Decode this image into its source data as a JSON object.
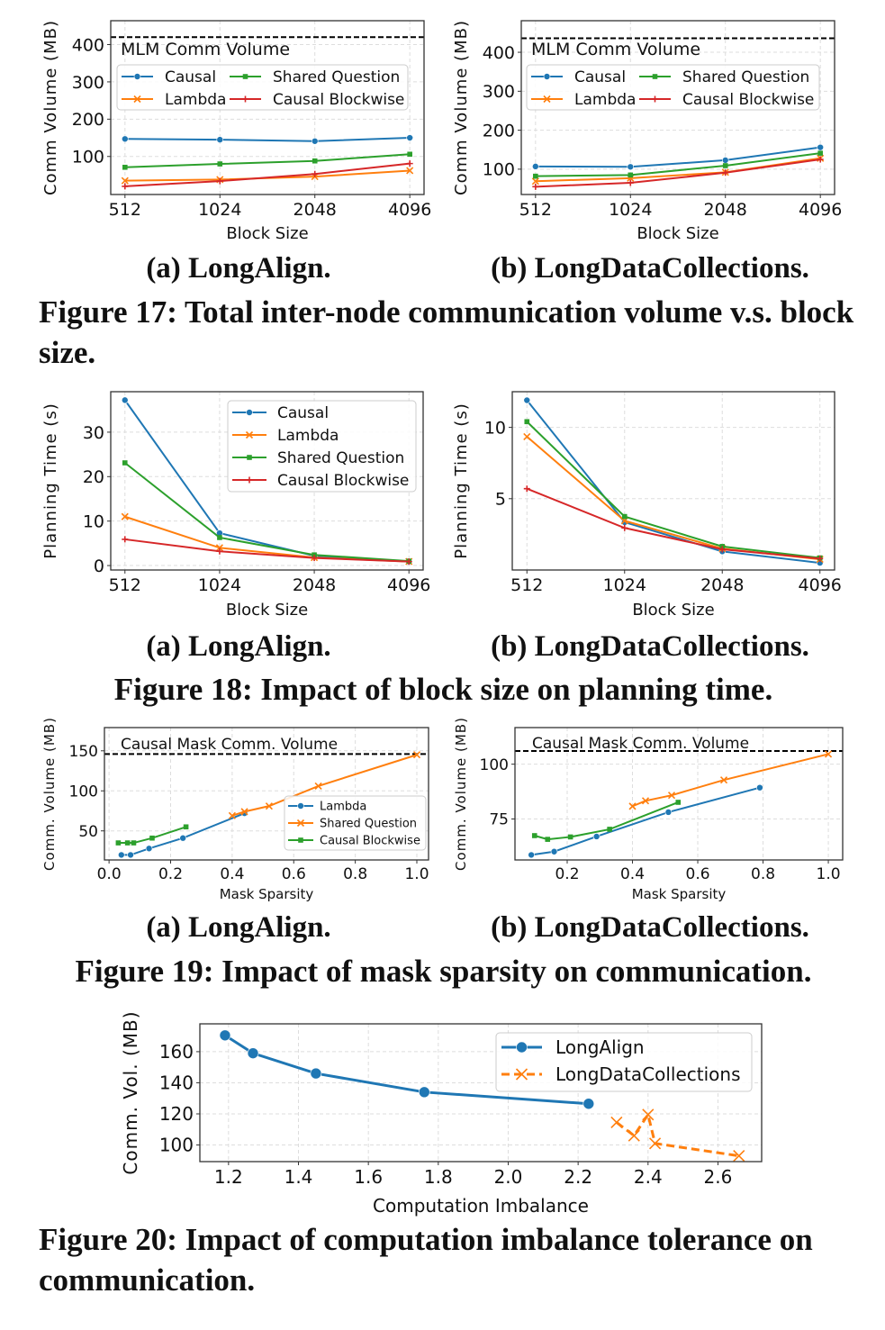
{
  "colors": {
    "blue": "#1f77b4",
    "orange": "#ff7f0e",
    "green": "#2ca02c",
    "red": "#d62728"
  },
  "figures": [
    {
      "caption": "Figure 17: Total inter-node communication volume v.s. block size.",
      "sub_a": "(a) LongAlign.",
      "sub_b": "(b) LongDataCollections."
    },
    {
      "caption": "Figure 18: Impact of block size on planning time.",
      "sub_a": "(a) LongAlign.",
      "sub_b": "(b) LongDataCollections."
    },
    {
      "caption": "Figure 19: Impact of mask sparsity on communication.",
      "sub_a": "(a) LongAlign.",
      "sub_b": "(b) LongDataCollections."
    },
    {
      "caption": "Figure 20: Impact of computation imbalance tolerance on communication."
    }
  ],
  "chart_data": [
    {
      "type": "line",
      "id": "fig17a",
      "xlabel": "Block Size",
      "ylabel": "Comm Volume (MB)",
      "categories": [
        "512",
        "1024",
        "2048",
        "4096"
      ],
      "xlim": [
        -0.15,
        3.15
      ],
      "ylim": [
        -2,
        464
      ],
      "yticks": [
        100,
        200,
        300,
        400
      ],
      "ytick_labels": [
        "100",
        "200",
        "300",
        "400"
      ],
      "grid": true,
      "hline": {
        "value": 420,
        "label": "MLM Comm Volume"
      },
      "legend": "upper-left, 2 columns",
      "series": [
        {
          "name": "Causal",
          "color": "#1f77b4",
          "marker": "circle",
          "values": [
            147,
            145,
            141,
            150
          ]
        },
        {
          "name": "Lambda",
          "color": "#ff7f0e",
          "marker": "x",
          "values": [
            35,
            38,
            46,
            62
          ]
        },
        {
          "name": "Shared Question",
          "color": "#2ca02c",
          "marker": "square",
          "values": [
            71,
            80,
            88,
            106
          ]
        },
        {
          "name": "Causal Blockwise",
          "color": "#d62728",
          "marker": "plus",
          "values": [
            20,
            34,
            53,
            81
          ]
        }
      ]
    },
    {
      "type": "line",
      "id": "fig17b",
      "xlabel": "Block Size",
      "ylabel": "Comm Volume (MB)",
      "categories": [
        "512",
        "1024",
        "2048",
        "4096"
      ],
      "xlim": [
        -0.15,
        3.15
      ],
      "ylim": [
        35,
        481
      ],
      "yticks": [
        100,
        200,
        300,
        400
      ],
      "ytick_labels": [
        "100",
        "200",
        "300",
        "400"
      ],
      "grid": true,
      "hline": {
        "value": 436,
        "label": "MLM Comm Volume"
      },
      "legend": "upper-left, 2 columns",
      "series": [
        {
          "name": "Causal",
          "color": "#1f77b4",
          "marker": "circle",
          "values": [
            107,
            106,
            123,
            156
          ]
        },
        {
          "name": "Lambda",
          "color": "#ff7f0e",
          "marker": "x",
          "values": [
            69,
            77,
            92,
            128
          ]
        },
        {
          "name": "Shared Question",
          "color": "#2ca02c",
          "marker": "square",
          "values": [
            82,
            85,
            109,
            141
          ]
        },
        {
          "name": "Causal Blockwise",
          "color": "#d62728",
          "marker": "plus",
          "values": [
            55,
            65,
            91,
            125
          ]
        }
      ]
    },
    {
      "type": "line",
      "id": "fig18a",
      "xlabel": "Block Size",
      "ylabel": "Planning Time (s)",
      "categories": [
        "512",
        "1024",
        "2048",
        "4096"
      ],
      "xlim": [
        -0.15,
        3.15
      ],
      "ylim": [
        -1,
        39.1
      ],
      "yticks": [
        0,
        10,
        20,
        30
      ],
      "ytick_labels": [
        "0",
        "10",
        "20",
        "30"
      ],
      "grid": true,
      "legend": "upper-right",
      "series": [
        {
          "name": "Causal",
          "color": "#1f77b4",
          "marker": "circle",
          "values": [
            37.2,
            7.3,
            2.2,
            0.9
          ]
        },
        {
          "name": "Lambda",
          "color": "#ff7f0e",
          "marker": "x",
          "values": [
            11.0,
            4.0,
            1.8,
            0.9
          ]
        },
        {
          "name": "Shared Question",
          "color": "#2ca02c",
          "marker": "square",
          "values": [
            23.1,
            6.3,
            2.4,
            1.0
          ]
        },
        {
          "name": "Causal Blockwise",
          "color": "#d62728",
          "marker": "plus",
          "values": [
            5.9,
            3.2,
            1.7,
            0.9
          ]
        }
      ]
    },
    {
      "type": "line",
      "id": "fig18b",
      "xlabel": "Block Size",
      "ylabel": "Planning Time (s)",
      "categories": [
        "512",
        "1024",
        "2048",
        "4096"
      ],
      "xlim": [
        -0.15,
        3.15
      ],
      "ylim": [
        0,
        12.5
      ],
      "yticks": [
        5,
        10
      ],
      "ytick_labels": [
        "5",
        "10"
      ],
      "grid": true,
      "series": [
        {
          "name": "Causal",
          "color": "#1f77b4",
          "marker": "circle",
          "values": [
            11.9,
            3.35,
            1.3,
            0.5
          ]
        },
        {
          "name": "Lambda",
          "color": "#ff7f0e",
          "marker": "x",
          "values": [
            9.35,
            3.45,
            1.5,
            0.75
          ]
        },
        {
          "name": "Shared Question",
          "color": "#2ca02c",
          "marker": "square",
          "values": [
            10.4,
            3.75,
            1.65,
            0.85
          ]
        },
        {
          "name": "Causal Blockwise",
          "color": "#d62728",
          "marker": "plus",
          "values": [
            5.7,
            2.95,
            1.45,
            0.8
          ]
        }
      ]
    },
    {
      "type": "line",
      "id": "fig19a",
      "xlabel": "Mask Sparsity",
      "ylabel": "Comm. Volume (MB)",
      "xlim": [
        -0.015,
        1.038
      ],
      "ylim": [
        13.7,
        179
      ],
      "xticks": [
        0,
        0.2,
        0.4,
        0.6,
        0.8,
        1.0
      ],
      "xtick_labels": [
        "0.0",
        "0.2",
        "0.4",
        "0.6",
        "0.8",
        "1.0"
      ],
      "yticks": [
        50,
        100,
        150
      ],
      "ytick_labels": [
        "50",
        "100",
        "150"
      ],
      "grid": true,
      "hline": {
        "value": 146,
        "label": "Causal Mask Comm. Volume"
      },
      "legend": "lower-right",
      "series": [
        {
          "name": "Lambda",
          "color": "#1f77b4",
          "marker": "circle",
          "x": [
            0.04,
            0.07,
            0.13,
            0.24,
            0.44
          ],
          "values": [
            20,
            20,
            28,
            41,
            72
          ]
        },
        {
          "name": "Shared Question",
          "color": "#ff7f0e",
          "marker": "x",
          "x": [
            0.4,
            0.44,
            0.52,
            0.68,
            1.0
          ],
          "values": [
            69,
            74,
            81,
            106,
            145
          ]
        },
        {
          "name": "Causal Blockwise",
          "color": "#2ca02c",
          "marker": "square",
          "x": [
            0.03,
            0.06,
            0.08,
            0.14,
            0.25
          ],
          "values": [
            35,
            35,
            35,
            41,
            55
          ]
        }
      ]
    },
    {
      "type": "line",
      "id": "fig19b",
      "xlabel": "Mask Sparsity",
      "ylabel": "Comm. Volume (MB)",
      "xlim": [
        0.04,
        1.044
      ],
      "ylim": [
        56.3,
        116.7
      ],
      "xticks": [
        0.2,
        0.4,
        0.6,
        0.8,
        1.0
      ],
      "xtick_labels": [
        "0.2",
        "0.4",
        "0.6",
        "0.8",
        "1.0"
      ],
      "yticks": [
        75,
        100
      ],
      "ytick_labels": [
        "75",
        "100"
      ],
      "grid": true,
      "hline": {
        "value": 106,
        "label": "Causal Mask Comm. Volume"
      },
      "series": [
        {
          "name": "Lambda",
          "color": "#1f77b4",
          "marker": "circle",
          "x": [
            0.09,
            0.16,
            0.29,
            0.51,
            0.79
          ],
          "values": [
            58.6,
            60.1,
            67,
            78.1,
            89.3
          ]
        },
        {
          "name": "Shared Question",
          "color": "#ff7f0e",
          "marker": "x",
          "x": [
            0.4,
            0.44,
            0.52,
            0.68,
            1.0
          ],
          "values": [
            80.8,
            83.3,
            85.8,
            92.8,
            104.6
          ]
        },
        {
          "name": "Causal Blockwise",
          "color": "#2ca02c",
          "marker": "square",
          "x": [
            0.1,
            0.14,
            0.21,
            0.33,
            0.54
          ],
          "values": [
            67.4,
            65.7,
            66.8,
            70.3,
            82.6
          ]
        }
      ]
    },
    {
      "type": "line",
      "id": "fig20",
      "xlabel": "Computation Imbalance",
      "ylabel": "Comm. Vol. (MB)",
      "xlim": [
        1.118,
        2.725
      ],
      "ylim": [
        89.3,
        177.9
      ],
      "xticks": [
        1.2,
        1.4,
        1.6,
        1.8,
        2.0,
        2.2,
        2.4,
        2.6
      ],
      "xtick_labels": [
        "1.2",
        "1.4",
        "1.6",
        "1.8",
        "2.0",
        "2.2",
        "2.4",
        "2.6"
      ],
      "yticks": [
        100,
        120,
        140,
        160
      ],
      "ytick_labels": [
        "100",
        "120",
        "140",
        "160"
      ],
      "grid": true,
      "legend": "upper-right",
      "series": [
        {
          "name": "LongAlign",
          "color": "#1f77b4",
          "marker": "circle",
          "dash": false,
          "x": [
            1.19,
            1.27,
            1.45,
            1.76,
            2.23
          ],
          "values": [
            170.5,
            159,
            146,
            134,
            126.5
          ]
        },
        {
          "name": "LongDataCollections",
          "color": "#ff7f0e",
          "marker": "x",
          "dash": true,
          "x": [
            2.31,
            2.36,
            2.4,
            2.42,
            2.66
          ],
          "values": [
            114.5,
            106,
            119.5,
            101,
            93
          ]
        }
      ]
    }
  ]
}
